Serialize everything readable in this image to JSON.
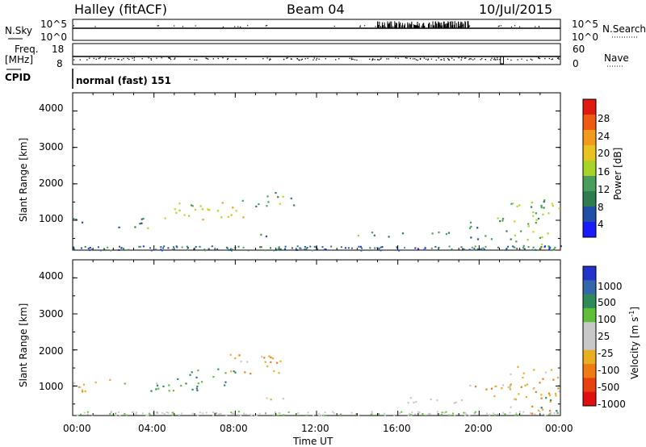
{
  "header": {
    "title": "Halley (fitACF)",
    "beam": "Beam 04",
    "date": "10/Jul/2015"
  },
  "top_panels": {
    "nsky_label": "N.Sky",
    "nsky_ticks": [
      "10^5",
      "10^0"
    ],
    "nsearch_label": "N.Search",
    "nsearch_ticks": [
      "10^5",
      "10^0"
    ],
    "freq_label_1": "Freq.",
    "freq_label_2": "[MHz]",
    "freq_ticks": [
      "18",
      "8"
    ],
    "nave_label": "Nave",
    "nave_ticks": [
      "60",
      "0"
    ],
    "cpid_label": "CPID",
    "cpid_text": "normal (fast) 151"
  },
  "x_axis": {
    "label": "Time UT",
    "ticks": [
      "00:00",
      "04:00",
      "08:00",
      "12:00",
      "16:00",
      "20:00",
      "00:00"
    ]
  },
  "panels": {
    "power": {
      "ylabel": "Slant Range [km]",
      "yticks": [
        "4000",
        "3000",
        "2000",
        "1000"
      ],
      "colorbar_label": "Power [dB]",
      "colorbar_ticks": [
        "28",
        "24",
        "20",
        "16",
        "12",
        "8",
        "4"
      ]
    },
    "velocity": {
      "ylabel": "Slant Range [km]",
      "yticks": [
        "4000",
        "3000",
        "2000",
        "1000"
      ],
      "colorbar_label": "Velocity [m s",
      "colorbar_sup": "-1",
      "colorbar_label_end": "]",
      "colorbar_ticks": [
        "1000",
        "500",
        "100",
        "25",
        "-25",
        "-100",
        "-500",
        "-1000"
      ]
    }
  },
  "colors": {
    "power_scale": [
      "#1a1aff",
      "#1f4fa6",
      "#2e7d4f",
      "#4a9e5c",
      "#a8d42a",
      "#e8c320",
      "#f29a1a",
      "#ef5a12",
      "#e01a10"
    ],
    "velocity_scale": [
      "#2233cc",
      "#3366aa",
      "#2e8b57",
      "#5fbf3a",
      "#c8c8c8",
      "#c8c8c8",
      "#e8b020",
      "#f07a14",
      "#e84010",
      "#e01010"
    ]
  },
  "chart_data": [
    {
      "type": "heatmap",
      "title": "Halley (fitACF)",
      "xlabel": "Time UT",
      "ylabel": "Slant Range [km]",
      "xlim": [
        "00:00",
        "24:00"
      ],
      "ylim": [
        180,
        4500
      ],
      "colorbar": "Power [dB]",
      "clim": [
        0,
        30
      ],
      "echo_regions": [
        {
          "t_start": 0.0,
          "t_end": 1.0,
          "range_start": 900,
          "range_end": 1200,
          "power_db": 8
        },
        {
          "t_start": 2.0,
          "t_end": 4.0,
          "range_start": 800,
          "range_end": 1100,
          "power_db": 10
        },
        {
          "t_start": 4.5,
          "t_end": 6.5,
          "range_start": 900,
          "range_end": 1500,
          "power_db": 16
        },
        {
          "t_start": 6.5,
          "t_end": 8.5,
          "range_start": 1100,
          "range_end": 1600,
          "power_db": 18
        },
        {
          "t_start": 8.5,
          "t_end": 11.0,
          "range_start": 1400,
          "range_end": 1800,
          "power_db": 12
        },
        {
          "t_start": 9.0,
          "t_end": 10.5,
          "range_start": 550,
          "range_end": 700,
          "power_db": 10
        },
        {
          "t_start": 14.0,
          "t_end": 19.5,
          "range_start": 550,
          "range_end": 700,
          "power_db": 8
        },
        {
          "t_start": 19.5,
          "t_end": 21.5,
          "range_start": 500,
          "range_end": 1100,
          "power_db": 10
        },
        {
          "t_start": 21.5,
          "t_end": 24.0,
          "range_start": 200,
          "range_end": 1600,
          "power_db": 14
        },
        {
          "t_start": 23.5,
          "t_end": 24.0,
          "range_start": 180,
          "range_end": 300,
          "power_db": 28
        }
      ]
    },
    {
      "type": "heatmap",
      "title": "Halley (fitACF)",
      "xlabel": "Time UT",
      "ylabel": "Slant Range [km]",
      "xlim": [
        "00:00",
        "24:00"
      ],
      "ylim": [
        180,
        4500
      ],
      "colorbar": "Velocity [m s-1]",
      "clim": [
        -1000,
        1000
      ],
      "echo_regions": [
        {
          "t_start": 0.0,
          "t_end": 2.0,
          "range_start": 800,
          "range_end": 1200,
          "velocity": -100
        },
        {
          "t_start": 2.0,
          "t_end": 5.0,
          "range_start": 800,
          "range_end": 1100,
          "velocity": 25
        },
        {
          "t_start": 5.0,
          "t_end": 8.0,
          "range_start": 900,
          "range_end": 1500,
          "velocity": 100
        },
        {
          "t_start": 7.5,
          "t_end": 10.5,
          "range_start": 1300,
          "range_end": 1900,
          "velocity": -100
        },
        {
          "t_start": 9.0,
          "t_end": 10.5,
          "range_start": 550,
          "range_end": 700,
          "velocity": -25
        },
        {
          "t_start": 14.0,
          "t_end": 19.5,
          "range_start": 550,
          "range_end": 700,
          "velocity": -25
        },
        {
          "t_start": 19.5,
          "t_end": 21.5,
          "range_start": 500,
          "range_end": 1100,
          "velocity": -100
        },
        {
          "t_start": 21.5,
          "t_end": 24.0,
          "range_start": 200,
          "range_end": 1600,
          "velocity": -100
        },
        {
          "t_start": 23.0,
          "t_end": 24.0,
          "range_start": 300,
          "range_end": 700,
          "velocity": 500
        }
      ]
    }
  ]
}
